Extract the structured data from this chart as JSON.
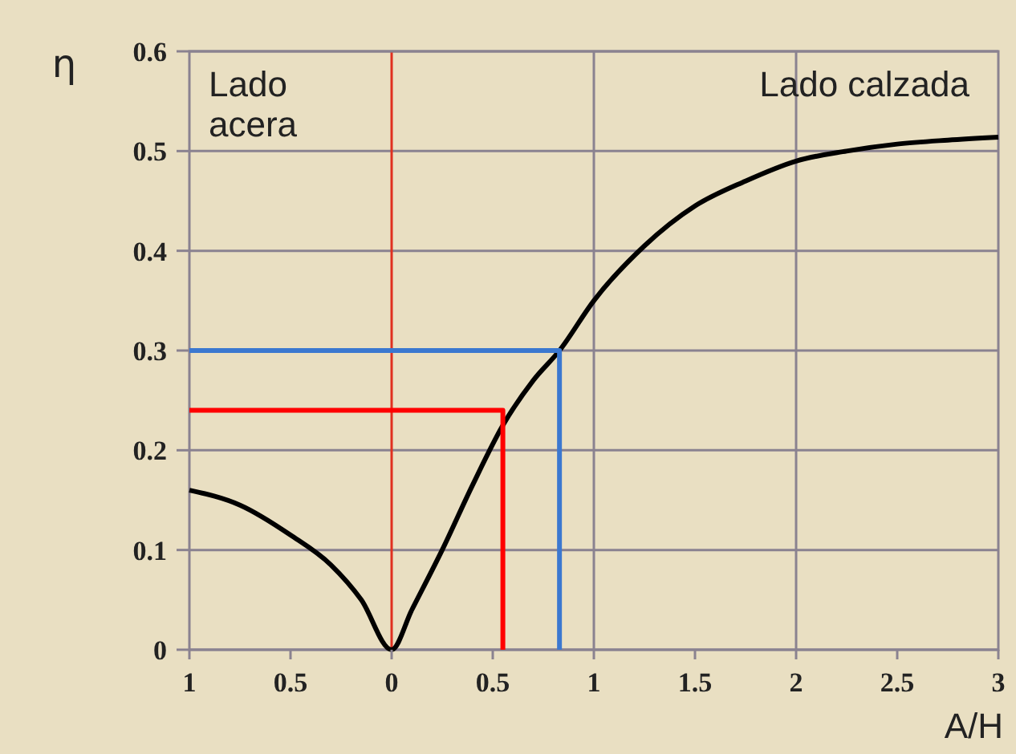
{
  "chart_data": {
    "type": "line",
    "xlabel": "A/H",
    "ylabel": "η",
    "xlim": [
      -1,
      3
    ],
    "ylim": [
      0,
      0.6
    ],
    "xticks": [
      {
        "value": -1,
        "label": "1"
      },
      {
        "value": -0.5,
        "label": "0.5"
      },
      0,
      0.5,
      1,
      1.5,
      2,
      2.5,
      3
    ],
    "yticks": [
      0,
      0.1,
      0.2,
      0.3,
      0.4,
      0.5,
      0.6
    ],
    "grid": "y",
    "marker": "none",
    "line_style": "solid",
    "series": [
      {
        "color": "#000000",
        "x": [
          -1,
          -0.75,
          -0.5,
          -0.3,
          -0.15,
          0,
          0.1,
          0.25,
          0.4,
          0.55,
          0.7,
          0.83,
          1,
          1.25,
          1.5,
          1.75,
          2,
          2.25,
          2.5,
          2.75,
          3
        ],
        "values": [
          0.16,
          0.145,
          0.115,
          0.085,
          0.05,
          0,
          0.04,
          0.1,
          0.165,
          0.225,
          0.27,
          0.3,
          0.35,
          0.405,
          0.445,
          0.47,
          0.49,
          0.5,
          0.507,
          0.511,
          0.514
        ]
      },
      {
        "color": "#3b78d0",
        "x": [
          -1,
          0.83,
          0.83
        ],
        "values": [
          0.3,
          0.3,
          0
        ]
      },
      {
        "color": "#ff0000",
        "x": [
          -1,
          0.55,
          0.55
        ],
        "values": [
          0.24,
          0.24,
          0
        ]
      }
    ],
    "ref_lines": [
      {
        "axis": "x",
        "value": 0,
        "color": "#e03020"
      },
      {
        "axis": "x",
        "value": 1,
        "color": "#8a8290"
      },
      {
        "axis": "x",
        "value": 2,
        "color": "#8a8290"
      }
    ],
    "annotations": [
      "Lado\nacera",
      "Lado calzada"
    ]
  }
}
